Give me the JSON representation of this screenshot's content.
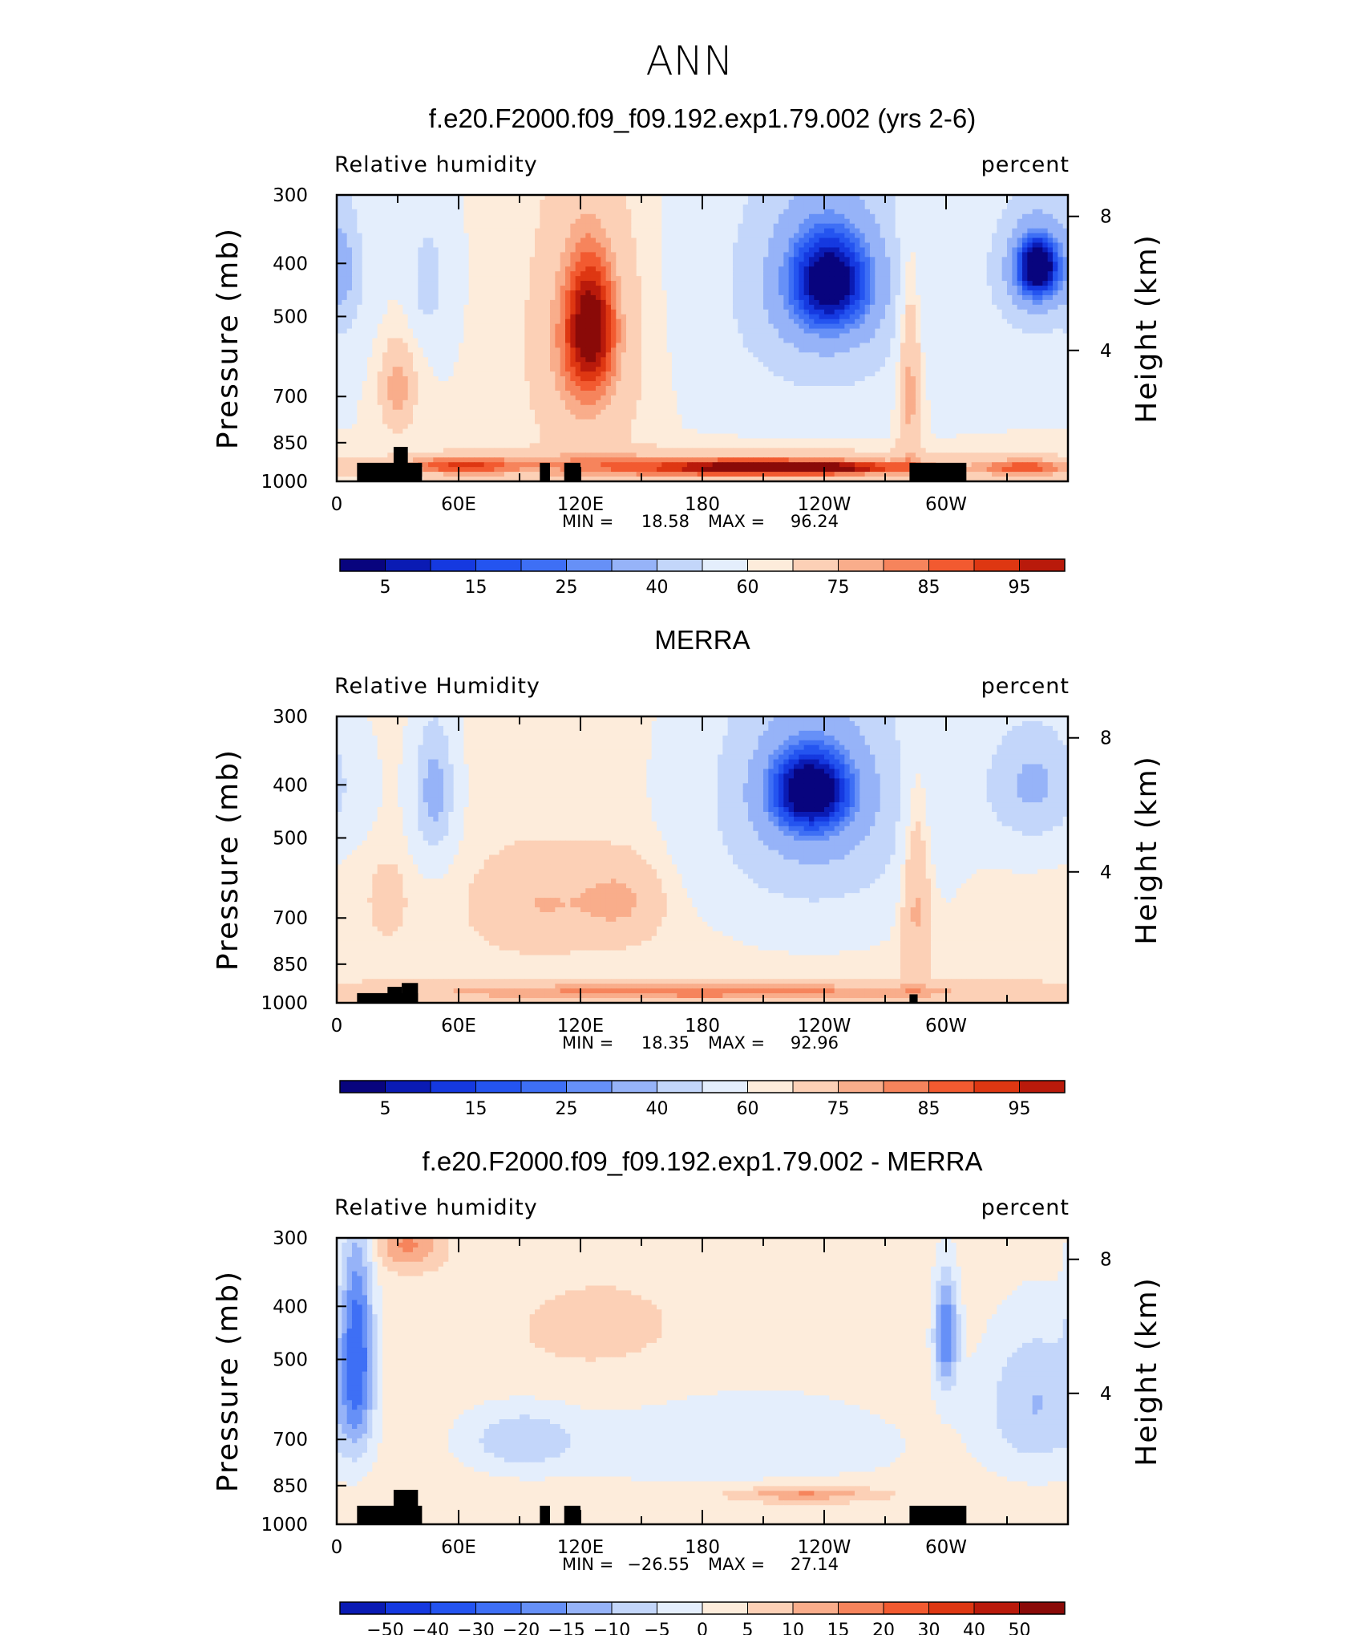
{
  "suptitle": "ANN",
  "colors": {
    "palette": [
      "#08047e",
      "#0a1bb4",
      "#1539e0",
      "#2454f0",
      "#3e6ff5",
      "#6690f7",
      "#96b3f8",
      "#c3d6fa",
      "#e4eefc",
      "#fdecdb",
      "#fcd0b6",
      "#f9ad8b",
      "#f6845c",
      "#f25a30",
      "#de3712",
      "#b91a0b",
      "#8a0a08"
    ],
    "terrain": "#000000"
  },
  "chart_data": [
    {
      "type": "heatmap",
      "title": "f.e20.F2000.f09_f09.192.exp1.79.002 (yrs 2-6)",
      "variable": "Relative humidity",
      "units": "percent",
      "ylabel": "Pressure (mb)",
      "ylabel_right": "Height (km)",
      "x_ticks": [
        "0",
        "60E",
        "120E",
        "180",
        "120W",
        "60W"
      ],
      "y_ticks": [
        "300",
        "400",
        "500",
        "700",
        "850",
        "1000"
      ],
      "y_ticks_right": [
        "8",
        "4"
      ],
      "min_label": "MIN =",
      "min": "18.58",
      "max_label": "MAX =",
      "max": "96.24",
      "colorbar_labels": [
        "5",
        "15",
        "25",
        "40",
        "60",
        "75",
        "85",
        "95"
      ],
      "background": 60,
      "blobs": [
        {
          "lon": 122,
          "p": 565,
          "rx": 24,
          "ry": 300,
          "v": 82
        },
        {
          "lon": 125,
          "p": 520,
          "rx": 12,
          "ry": 140,
          "v": 87
        },
        {
          "lon": 240,
          "p": 440,
          "rx": 45,
          "ry": 230,
          "v": 32
        },
        {
          "lon": 243,
          "p": 430,
          "rx": 20,
          "ry": 90,
          "v": 23
        },
        {
          "lon": 345,
          "p": 410,
          "rx": 22,
          "ry": 120,
          "v": 30
        },
        {
          "lon": 345,
          "p": 405,
          "rx": 10,
          "ry": 50,
          "v": 20
        },
        {
          "lon": 45,
          "p": 430,
          "rx": 8,
          "ry": 90,
          "v": 42
        },
        {
          "lon": 5,
          "p": 420,
          "rx": 8,
          "ry": 140,
          "v": 50
        },
        {
          "lon": 185,
          "p": 940,
          "rx": 110,
          "ry": 60,
          "v": 85
        },
        {
          "lon": 225,
          "p": 945,
          "rx": 55,
          "ry": 25,
          "v": 94
        },
        {
          "lon": 60,
          "p": 935,
          "rx": 30,
          "ry": 40,
          "v": 85
        },
        {
          "lon": 30,
          "p": 680,
          "rx": 8,
          "ry": 120,
          "v": 80
        },
        {
          "lon": 282,
          "p": 620,
          "rx": 6,
          "ry": 300,
          "v": 82
        },
        {
          "lon": 340,
          "p": 945,
          "rx": 25,
          "ry": 40,
          "v": 85
        }
      ],
      "terrain": [
        {
          "lon0": 10,
          "lon1": 34,
          "p_top": 925
        },
        {
          "lon0": 28,
          "lon1": 35,
          "p_top": 865
        },
        {
          "lon0": 34,
          "lon1": 42,
          "p_top": 925
        },
        {
          "lon0": 100,
          "lon1": 105,
          "p_top": 925
        },
        {
          "lon0": 112,
          "lon1": 120,
          "p_top": 925
        },
        {
          "lon0": 282,
          "lon1": 310,
          "p_top": 925
        }
      ]
    },
    {
      "type": "heatmap",
      "title": "MERRA",
      "variable": "Relative Humidity",
      "units": "percent",
      "ylabel": "Pressure (mb)",
      "ylabel_right": "Height (km)",
      "x_ticks": [
        "0",
        "60E",
        "120E",
        "180",
        "120W",
        "60W"
      ],
      "y_ticks": [
        "300",
        "400",
        "500",
        "700",
        "850",
        "1000"
      ],
      "y_ticks_right": [
        "8",
        "4"
      ],
      "min_label": "MIN =",
      "min": "18.35",
      "max_label": "MAX =",
      "max": "92.96",
      "colorbar_labels": [
        "5",
        "15",
        "25",
        "40",
        "60",
        "75",
        "85",
        "95"
      ],
      "background": 62,
      "blobs": [
        {
          "lon": 235,
          "p": 420,
          "rx": 50,
          "ry": 240,
          "v": 32
        },
        {
          "lon": 233,
          "p": 410,
          "rx": 20,
          "ry": 70,
          "v": 22
        },
        {
          "lon": 48,
          "p": 410,
          "rx": 10,
          "ry": 120,
          "v": 35
        },
        {
          "lon": 343,
          "p": 400,
          "rx": 25,
          "ry": 110,
          "v": 38
        },
        {
          "lon": 100,
          "p": 660,
          "rx": 30,
          "ry": 130,
          "v": 75
        },
        {
          "lon": 140,
          "p": 650,
          "rx": 20,
          "ry": 110,
          "v": 76
        },
        {
          "lon": 180,
          "p": 955,
          "rx": 180,
          "ry": 40,
          "v": 83
        },
        {
          "lon": 285,
          "p": 620,
          "rx": 7,
          "ry": 280,
          "v": 80
        },
        {
          "lon": 25,
          "p": 650,
          "rx": 8,
          "ry": 90,
          "v": 72
        }
      ],
      "terrain": [
        {
          "lon0": 10,
          "lon1": 40,
          "p_top": 960
        },
        {
          "lon0": 25,
          "lon1": 32,
          "p_top": 935
        },
        {
          "lon0": 32,
          "lon1": 40,
          "p_top": 920
        },
        {
          "lon0": 282,
          "lon1": 286,
          "p_top": 965
        }
      ]
    },
    {
      "type": "heatmap",
      "title": "f.e20.F2000.f09_f09.192.exp1.79.002 - MERRA",
      "variable": "Relative humidity",
      "units": "percent",
      "ylabel": "Pressure (mb)",
      "ylabel_right": "Height (km)",
      "x_ticks": [
        "0",
        "60E",
        "120E",
        "180",
        "120W",
        "60W"
      ],
      "y_ticks": [
        "300",
        "400",
        "500",
        "700",
        "850",
        "1000"
      ],
      "y_ticks_right": [
        "8",
        "4"
      ],
      "min_label": "MIN =",
      "min": "−26.55",
      "max_label": "MAX =",
      "max": "27.14",
      "colorbar_labels": [
        "−50",
        "−40",
        "−30",
        "−20",
        "−15",
        "−10",
        "−5",
        "0",
        "5",
        "10",
        "15",
        "20",
        "30",
        "40",
        "50"
      ],
      "background": 3,
      "blobs": [
        {
          "lon": 10,
          "p": 480,
          "rx": 8,
          "ry": 220,
          "v": -22
        },
        {
          "lon": 300,
          "p": 450,
          "rx": 6,
          "ry": 110,
          "v": -20
        },
        {
          "lon": 345,
          "p": 600,
          "rx": 28,
          "ry": 200,
          "v": -10
        },
        {
          "lon": 200,
          "p": 720,
          "rx": 80,
          "ry": 160,
          "v": -5
        },
        {
          "lon": 90,
          "p": 700,
          "rx": 30,
          "ry": 100,
          "v": -8
        },
        {
          "lon": 225,
          "p": 880,
          "rx": 55,
          "ry": 60,
          "v": 8
        },
        {
          "lon": 230,
          "p": 880,
          "rx": 30,
          "ry": 20,
          "v": 13
        },
        {
          "lon": 130,
          "p": 450,
          "rx": 60,
          "ry": 130,
          "v": 6
        },
        {
          "lon": 35,
          "p": 310,
          "rx": 15,
          "ry": 30,
          "v": 16
        }
      ],
      "terrain": [
        {
          "lon0": 10,
          "lon1": 34,
          "p_top": 925
        },
        {
          "lon0": 28,
          "lon1": 40,
          "p_top": 865
        },
        {
          "lon0": 34,
          "lon1": 42,
          "p_top": 925
        },
        {
          "lon0": 100,
          "lon1": 105,
          "p_top": 925
        },
        {
          "lon0": 112,
          "lon1": 120,
          "p_top": 925
        },
        {
          "lon0": 282,
          "lon1": 310,
          "p_top": 925
        }
      ]
    }
  ]
}
